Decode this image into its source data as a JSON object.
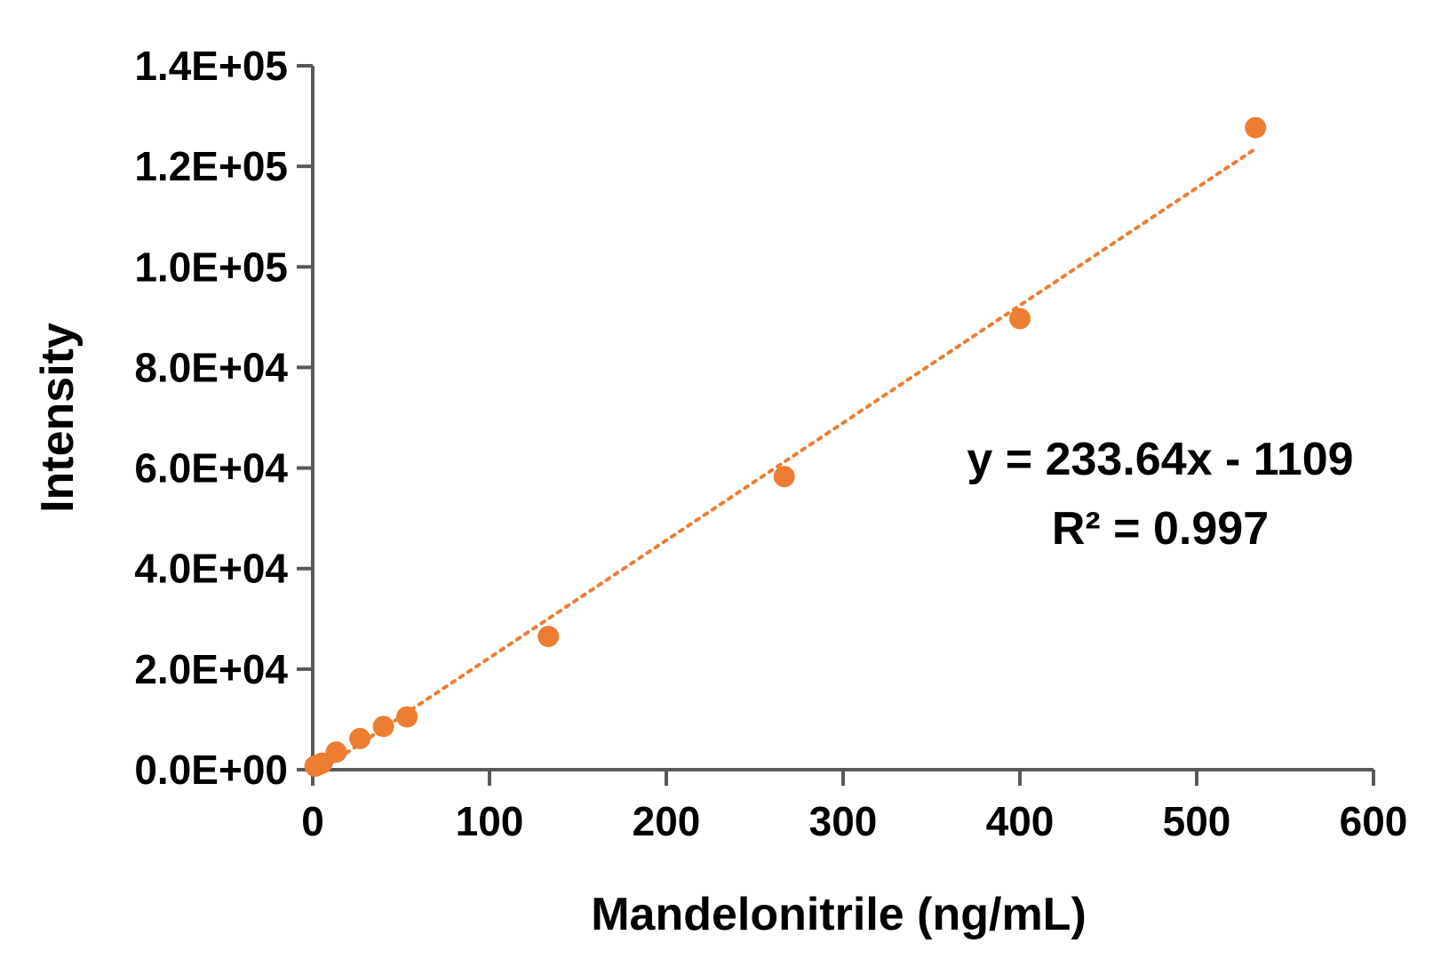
{
  "chart_data": {
    "type": "scatter",
    "title": "",
    "xlabel": "Mandelonitrile (ng/mL)",
    "ylabel": "Intensity",
    "xlim": [
      0,
      600
    ],
    "ylim": [
      0,
      140000
    ],
    "x_ticks": [
      0,
      100,
      200,
      300,
      400,
      500,
      600
    ],
    "x_tick_labels": [
      "0",
      "100",
      "200",
      "300",
      "400",
      "500",
      "600"
    ],
    "y_ticks": [
      0,
      20000,
      40000,
      60000,
      80000,
      100000,
      120000,
      140000
    ],
    "y_tick_labels": [
      "0.0E+00",
      "2.0E+04",
      "4.0E+04",
      "6.0E+04",
      "8.0E+04",
      "1.0E+05",
      "1.2E+05",
      "1.4E+05"
    ],
    "grid": false,
    "legend": "none",
    "series": [
      {
        "color": "#ED7D31",
        "x": [
          1.3,
          2.7,
          5.3,
          13.3,
          26.7,
          40,
          53.3,
          133.3,
          266.7,
          400,
          533.3
        ],
        "y": [
          700,
          900,
          1300,
          3500,
          6200,
          8600,
          10500,
          26500,
          58300,
          89700,
          127700
        ]
      }
    ],
    "trendline": {
      "type": "linear",
      "slope": 233.64,
      "intercept": -1109,
      "x_range": [
        5,
        533.3
      ],
      "color": "#ED7D31",
      "style": "dotted"
    },
    "annotations": {
      "equation": "y = 233.64x - 1109",
      "r_squared": "R² = 0.997"
    },
    "axis_color": "#595959"
  }
}
